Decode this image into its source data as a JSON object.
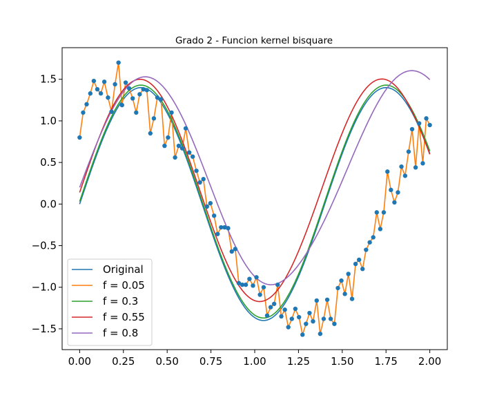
{
  "chart_data": {
    "type": "line",
    "title": "Grado 2 - Funcion kernel bisquare",
    "xlabel": "",
    "ylabel": "",
    "xlim": [
      -0.1,
      2.1
    ],
    "ylim": [
      -1.75,
      1.88
    ],
    "x_ticks": [
      0.0,
      0.25,
      0.5,
      0.75,
      1.0,
      1.25,
      1.5,
      1.75,
      2.0
    ],
    "x_tick_labels": [
      "0.00",
      "0.25",
      "0.50",
      "0.75",
      "1.00",
      "1.25",
      "1.50",
      "1.75",
      "2.00"
    ],
    "y_ticks": [
      -1.5,
      -1.0,
      -0.5,
      0.0,
      0.5,
      1.0,
      1.5
    ],
    "y_tick_labels": [
      "−1.5",
      "−1.0",
      "−0.5",
      "0.0",
      "0.5",
      "1.0",
      "1.5"
    ],
    "legend_position": "lower-left",
    "scatter": {
      "color": "#1f77b4",
      "x": [
        0.0,
        0.02,
        0.04,
        0.061,
        0.081,
        0.101,
        0.121,
        0.141,
        0.162,
        0.182,
        0.202,
        0.222,
        0.242,
        0.263,
        0.283,
        0.303,
        0.323,
        0.343,
        0.364,
        0.384,
        0.404,
        0.424,
        0.444,
        0.465,
        0.485,
        0.505,
        0.525,
        0.545,
        0.566,
        0.586,
        0.606,
        0.626,
        0.646,
        0.667,
        0.687,
        0.707,
        0.727,
        0.747,
        0.768,
        0.788,
        0.808,
        0.828,
        0.848,
        0.869,
        0.889,
        0.909,
        0.929,
        0.949,
        0.97,
        0.99,
        1.01,
        1.03,
        1.051,
        1.071,
        1.091,
        1.111,
        1.131,
        1.152,
        1.172,
        1.192,
        1.212,
        1.232,
        1.253,
        1.273,
        1.293,
        1.313,
        1.333,
        1.354,
        1.374,
        1.394,
        1.414,
        1.434,
        1.455,
        1.475,
        1.495,
        1.515,
        1.535,
        1.556,
        1.576,
        1.596,
        1.616,
        1.636,
        1.657,
        1.677,
        1.697,
        1.717,
        1.737,
        1.758,
        1.778,
        1.798,
        1.818,
        1.838,
        1.859,
        1.879,
        1.899,
        1.919,
        1.939,
        1.96,
        1.98,
        2.0
      ],
      "y": [
        0.8,
        1.1,
        1.2,
        1.33,
        1.48,
        1.38,
        1.33,
        1.47,
        1.28,
        1.11,
        1.44,
        1.7,
        1.19,
        1.46,
        1.39,
        1.27,
        1.1,
        1.32,
        1.38,
        1.37,
        0.85,
        1.03,
        1.28,
        1.26,
        0.7,
        0.8,
        1.1,
        0.56,
        0.7,
        0.67,
        0.91,
        0.62,
        0.57,
        0.4,
        0.26,
        0.3,
        -0.03,
        0.01,
        -0.14,
        -0.36,
        -0.28,
        -0.28,
        -0.29,
        -0.57,
        -0.54,
        -0.95,
        -0.97,
        -0.97,
        -0.9,
        -0.98,
        -0.88,
        -1.09,
        -1.0,
        -1.34,
        -1.24,
        -1.2,
        -0.97,
        -1.35,
        -1.27,
        -1.48,
        -1.38,
        -1.26,
        -1.36,
        -1.57,
        -1.44,
        -1.31,
        -1.41,
        -1.16,
        -1.56,
        -1.38,
        -1.15,
        -1.38,
        -1.44,
        -1.01,
        -0.92,
        -1.08,
        -0.84,
        -1.14,
        -0.72,
        -0.67,
        -0.78,
        -0.55,
        -0.46,
        -0.4,
        -0.1,
        -0.3,
        -0.1,
        0.39,
        0.17,
        0.02,
        0.14,
        0.45,
        0.34,
        0.63,
        0.9,
        0.44,
        0.97,
        0.49,
        1.03,
        0.95
      ]
    },
    "series": [
      {
        "name": "Original",
        "color": "#1f77b4",
        "kind": "curve",
        "params": {
          "a": 0.0,
          "b": 1.4,
          "p": 0.7,
          "h": 0.0,
          "amp": 0.0,
          "c": 0.0
        }
      },
      {
        "name": "f = 0.05",
        "color": "#ff7f0e",
        "kind": "through_points"
      },
      {
        "name": "f = 0.3",
        "color": "#2ca02c",
        "kind": "curve",
        "params": {
          "a": 0.03,
          "b": 1.4,
          "p": 0.7,
          "h": 0.0,
          "amp": 0.0,
          "c": 0.0
        }
      },
      {
        "name": "f = 0.55",
        "color": "#d62728",
        "kind": "curve",
        "params": {
          "a": 0.14,
          "b": 1.36,
          "p": 0.69,
          "h": 0.06,
          "amp": 0.2,
          "c": 1.15
        }
      },
      {
        "name": "f = 0.8",
        "color": "#9467bd",
        "kind": "curve",
        "params": {
          "a": 0.2,
          "b": 1.33,
          "p": 0.75,
          "h": 0.22,
          "amp": 0.9,
          "c": 1.25
        }
      }
    ]
  }
}
